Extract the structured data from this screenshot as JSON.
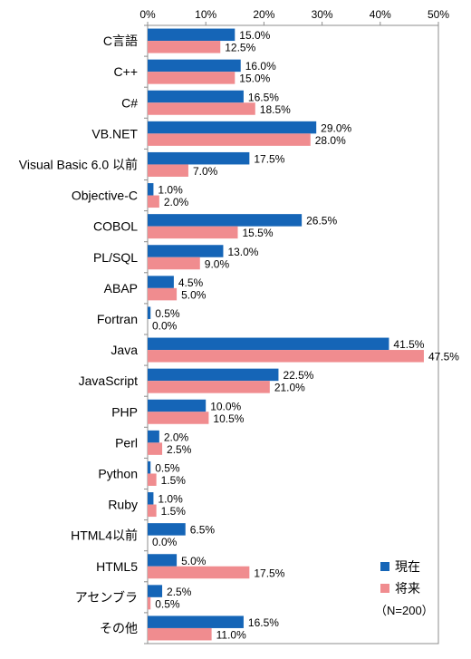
{
  "chart_data": {
    "type": "bar",
    "orientation": "horizontal",
    "categories": [
      "C言語",
      "C++",
      "C#",
      "VB.NET",
      "Visual Basic 6.0 以前",
      "Objective-C",
      "COBOL",
      "PL/SQL",
      "ABAP",
      "Fortran",
      "Java",
      "JavaScript",
      "PHP",
      "Perl",
      "Python",
      "Ruby",
      "HTML4以前",
      "HTML5",
      "アセンブラ",
      "その他"
    ],
    "series": [
      {
        "name": "現在",
        "color": "#1565b7",
        "values": [
          15.0,
          16.0,
          16.5,
          29.0,
          17.5,
          1.0,
          26.5,
          13.0,
          4.5,
          0.5,
          41.5,
          22.5,
          10.0,
          2.0,
          0.5,
          1.0,
          6.5,
          5.0,
          2.5,
          16.5
        ],
        "labels": [
          "15.0%",
          "16.0%",
          "16.5%",
          "29.0%",
          "17.5%",
          "1.0%",
          "26.5%",
          "13.0%",
          "4.5%",
          "0.5%",
          "41.5%",
          "22.5%",
          "10.0%",
          "2.0%",
          "0.5%",
          "1.0%",
          "6.5%",
          "5.0%",
          "2.5%",
          "16.5%"
        ]
      },
      {
        "name": "将来",
        "color": "#f08c8f",
        "values": [
          12.5,
          15.0,
          18.5,
          28.0,
          7.0,
          2.0,
          15.5,
          9.0,
          5.0,
          0.0,
          47.5,
          21.0,
          10.5,
          2.5,
          1.5,
          1.5,
          0.0,
          17.5,
          0.5,
          11.0
        ],
        "labels": [
          "12.5%",
          "15.0%",
          "18.5%",
          "28.0%",
          "7.0%",
          "2.0%",
          "15.5%",
          "9.0%",
          "5.0%",
          "0.0%",
          "47.5%",
          "21.0%",
          "10.5%",
          "2.5%",
          "1.5%",
          "1.5%",
          "0.0%",
          "17.5%",
          "0.5%",
          "11.0%"
        ]
      }
    ],
    "xlim": [
      0,
      50
    ],
    "xticks": [
      "0%",
      "10%",
      "20%",
      "30%",
      "40%",
      "50%"
    ],
    "legend_position": "bottom-right",
    "note": "（N=200）",
    "grid": false
  }
}
